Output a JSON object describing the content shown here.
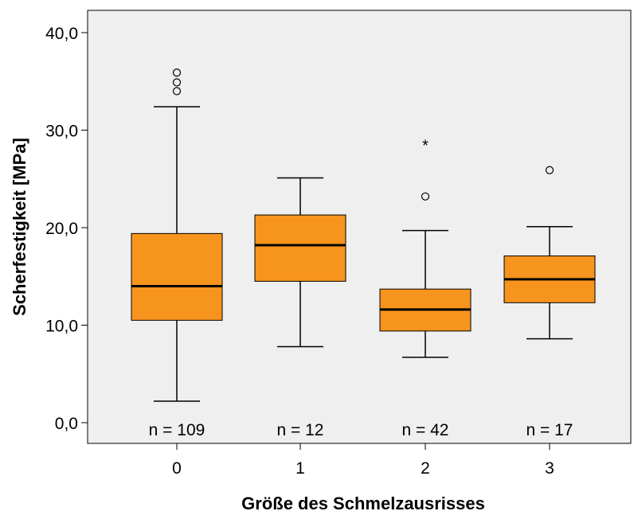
{
  "colors": {
    "plot_bg": "#efefef",
    "box_fill": "#f7941d",
    "line": "#000000"
  },
  "chart_data": {
    "type": "boxplot",
    "xlabel": "Größe des Schmelzausrisses",
    "ylabel": "Scherfestigkeit [MPa]",
    "ylim": [
      0,
      40
    ],
    "yticks": [
      0,
      10,
      20,
      30,
      40
    ],
    "ytick_labels": [
      "0,0",
      "10,0",
      "20,0",
      "30,0",
      "40,0"
    ],
    "grid": false,
    "categories": [
      "0",
      "1",
      "2",
      "3"
    ],
    "boxes": [
      {
        "category": "0",
        "min": 2.2,
        "q1": 10.5,
        "median": 14.0,
        "q3": 19.4,
        "max": 32.4,
        "outliers": [
          34.0,
          34.9,
          35.9
        ],
        "extremes": [],
        "n_label": "n = 109"
      },
      {
        "category": "1",
        "min": 7.8,
        "q1": 14.5,
        "median": 18.2,
        "q3": 21.3,
        "max": 25.1,
        "outliers": [],
        "extremes": [],
        "n_label": "n = 12"
      },
      {
        "category": "2",
        "min": 6.7,
        "q1": 9.4,
        "median": 11.6,
        "q3": 13.7,
        "max": 19.7,
        "outliers": [
          23.2
        ],
        "extremes": [
          28.6
        ],
        "n_label": "n = 42"
      },
      {
        "category": "3",
        "min": 8.6,
        "q1": 12.3,
        "median": 14.7,
        "q3": 17.1,
        "max": 20.1,
        "outliers": [
          25.9
        ],
        "extremes": [],
        "n_label": "n = 17"
      }
    ]
  }
}
